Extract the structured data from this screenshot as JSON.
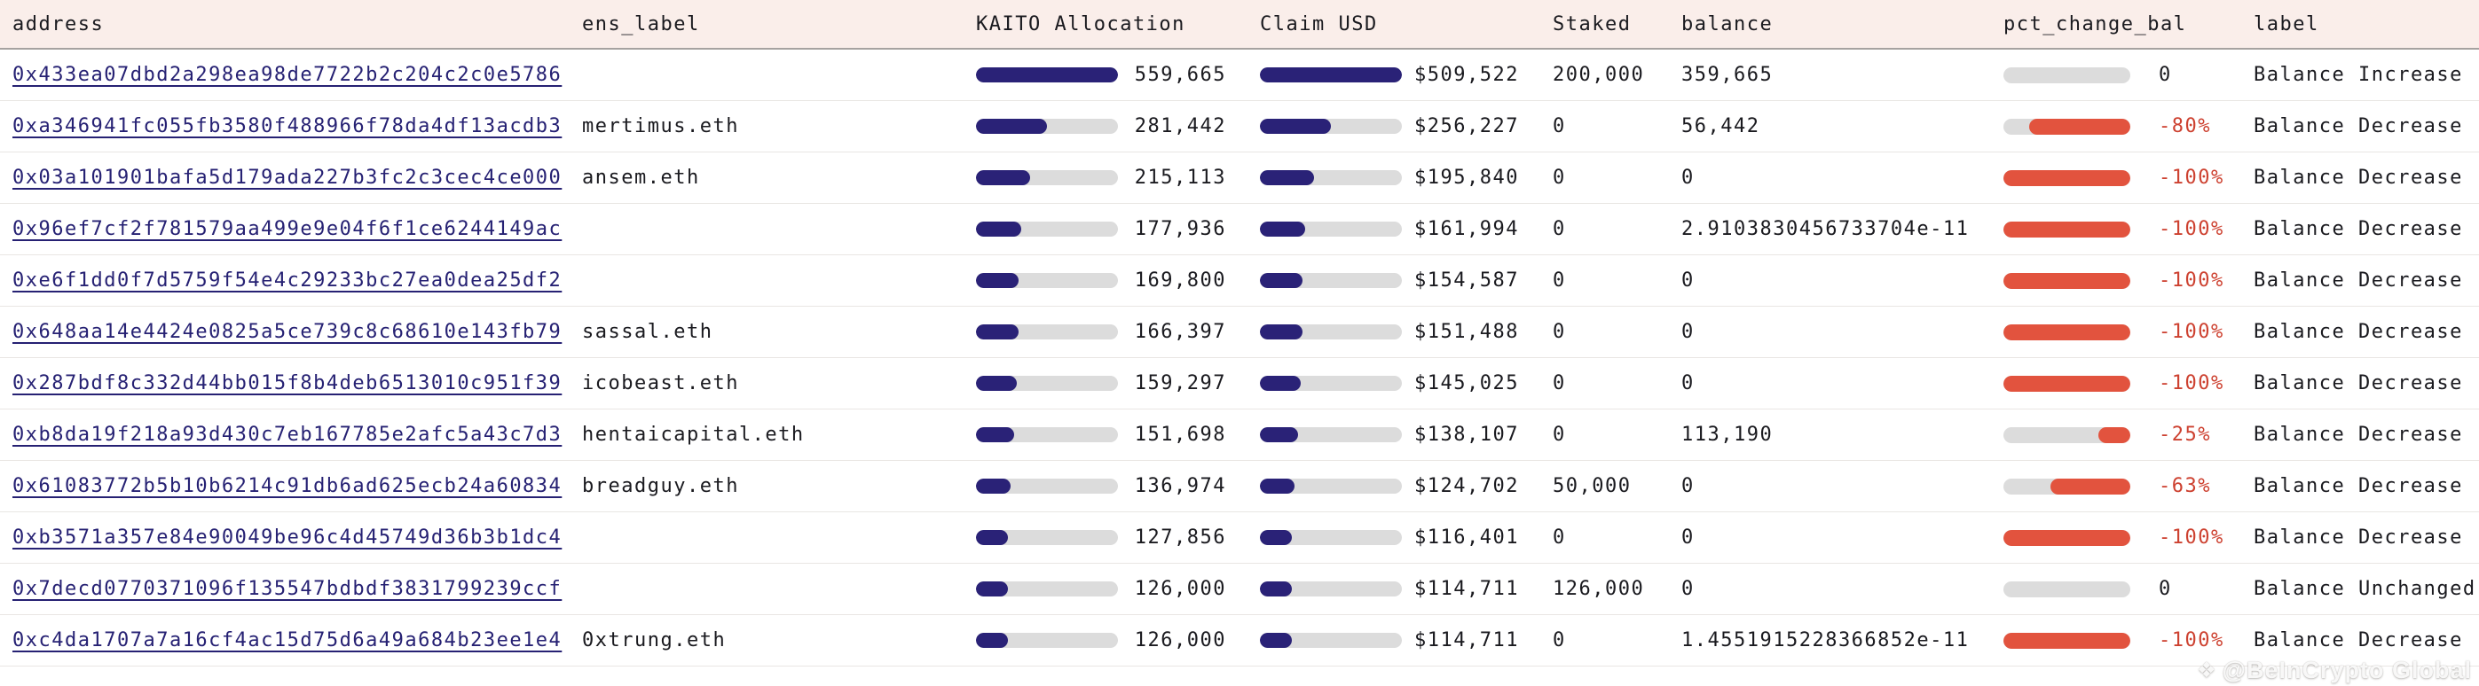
{
  "table": {
    "headers": [
      "address",
      "ens_label",
      "KAITO Allocation",
      "Claim USD",
      "Staked",
      "balance",
      "pct_change_bal",
      "label"
    ],
    "rows": [
      {
        "address": "0x433ea07dbd2a298ea98de7722b2c204c2c0e5786",
        "ens_label": "",
        "kaito_allocation": "559,665",
        "kaito_fill_pct": 100,
        "claim_usd": "$509,522",
        "claim_fill_pct": 100,
        "staked": "200,000",
        "balance": "359,665",
        "pct_change_display": "0",
        "pct_fill_pct": 0,
        "pct_negative": false,
        "label": "Balance Increase"
      },
      {
        "address": "0xa346941fc055fb3580f488966f78da4df13acdb3",
        "ens_label": "mertimus.eth",
        "kaito_allocation": "281,442",
        "kaito_fill_pct": 50.3,
        "claim_usd": "$256,227",
        "claim_fill_pct": 50.3,
        "staked": "0",
        "balance": "56,442",
        "pct_change_display": "-80%",
        "pct_fill_pct": 80,
        "pct_negative": true,
        "label": "Balance Decrease"
      },
      {
        "address": "0x03a101901bafa5d179ada227b3fc2c3cec4ce000",
        "ens_label": "ansem.eth",
        "kaito_allocation": "215,113",
        "kaito_fill_pct": 38.4,
        "claim_usd": "$195,840",
        "claim_fill_pct": 38.4,
        "staked": "0",
        "balance": "0",
        "pct_change_display": "-100%",
        "pct_fill_pct": 100,
        "pct_negative": true,
        "label": "Balance Decrease"
      },
      {
        "address": "0x96ef7cf2f781579aa499e9e04f6f1ce6244149ac",
        "ens_label": "",
        "kaito_allocation": "177,936",
        "kaito_fill_pct": 31.8,
        "claim_usd": "$161,994",
        "claim_fill_pct": 31.8,
        "staked": "0",
        "balance": "2.9103830456733704e-11",
        "pct_change_display": "-100%",
        "pct_fill_pct": 100,
        "pct_negative": true,
        "label": "Balance Decrease"
      },
      {
        "address": "0xe6f1dd0f7d5759f54e4c29233bc27ea0dea25df2",
        "ens_label": "",
        "kaito_allocation": "169,800",
        "kaito_fill_pct": 30.3,
        "claim_usd": "$154,587",
        "claim_fill_pct": 30.3,
        "staked": "0",
        "balance": "0",
        "pct_change_display": "-100%",
        "pct_fill_pct": 100,
        "pct_negative": true,
        "label": "Balance Decrease"
      },
      {
        "address": "0x648aa14e4424e0825a5ce739c8c68610e143fb79",
        "ens_label": "sassal.eth",
        "kaito_allocation": "166,397",
        "kaito_fill_pct": 29.7,
        "claim_usd": "$151,488",
        "claim_fill_pct": 29.7,
        "staked": "0",
        "balance": "0",
        "pct_change_display": "-100%",
        "pct_fill_pct": 100,
        "pct_negative": true,
        "label": "Balance Decrease"
      },
      {
        "address": "0x287bdf8c332d44bb015f8b4deb6513010c951f39",
        "ens_label": "icobeast.eth",
        "kaito_allocation": "159,297",
        "kaito_fill_pct": 28.5,
        "claim_usd": "$145,025",
        "claim_fill_pct": 28.5,
        "staked": "0",
        "balance": "0",
        "pct_change_display": "-100%",
        "pct_fill_pct": 100,
        "pct_negative": true,
        "label": "Balance Decrease"
      },
      {
        "address": "0xb8da19f218a93d430c7eb167785e2afc5a43c7d3",
        "ens_label": "hentaicapital.eth",
        "kaito_allocation": "151,698",
        "kaito_fill_pct": 27.1,
        "claim_usd": "$138,107",
        "claim_fill_pct": 27.1,
        "staked": "0",
        "balance": "113,190",
        "pct_change_display": "-25%",
        "pct_fill_pct": 25,
        "pct_negative": true,
        "label": "Balance Decrease"
      },
      {
        "address": "0x61083772b5b10b6214c91db6ad625ecb24a60834",
        "ens_label": "breadguy.eth",
        "kaito_allocation": "136,974",
        "kaito_fill_pct": 24.5,
        "claim_usd": "$124,702",
        "claim_fill_pct": 24.5,
        "staked": "50,000",
        "balance": "0",
        "pct_change_display": "-63%",
        "pct_fill_pct": 63,
        "pct_negative": true,
        "label": "Balance Decrease"
      },
      {
        "address": "0xb3571a357e84e90049be96c4d45749d36b3b1dc4",
        "ens_label": "",
        "kaito_allocation": "127,856",
        "kaito_fill_pct": 22.8,
        "claim_usd": "$116,401",
        "claim_fill_pct": 22.8,
        "staked": "0",
        "balance": "0",
        "pct_change_display": "-100%",
        "pct_fill_pct": 100,
        "pct_negative": true,
        "label": "Balance Decrease"
      },
      {
        "address": "0x7decd0770371096f135547bdbdf3831799239ccf",
        "ens_label": "",
        "kaito_allocation": "126,000",
        "kaito_fill_pct": 22.5,
        "claim_usd": "$114,711",
        "claim_fill_pct": 22.5,
        "staked": "126,000",
        "balance": "0",
        "pct_change_display": "0",
        "pct_fill_pct": 0,
        "pct_negative": false,
        "label": "Balance Unchanged"
      },
      {
        "address": "0xc4da1707a7a16cf4ac15d75d6a49a684b23ee1e4",
        "ens_label": "0xtrung.eth",
        "kaito_allocation": "126,000",
        "kaito_fill_pct": 22.5,
        "claim_usd": "$114,711",
        "claim_fill_pct": 22.5,
        "staked": "0",
        "balance": "1.4551915228366852e-11",
        "pct_change_display": "-100%",
        "pct_fill_pct": 100,
        "pct_negative": true,
        "label": "Balance Decrease"
      }
    ]
  },
  "watermark": {
    "text": "@BeInCrypto Global",
    "icon": "diamond-icon"
  },
  "colors": {
    "navy": "#2a2277",
    "track": "#dcdcdc",
    "red_bar": "#e2533e",
    "red_text": "#cd4130",
    "header_bg": "#faeeea",
    "header_border": "#a6a2a0",
    "link": "#262173",
    "text": "#1a1a1f",
    "separator": "#e9e6e3"
  }
}
